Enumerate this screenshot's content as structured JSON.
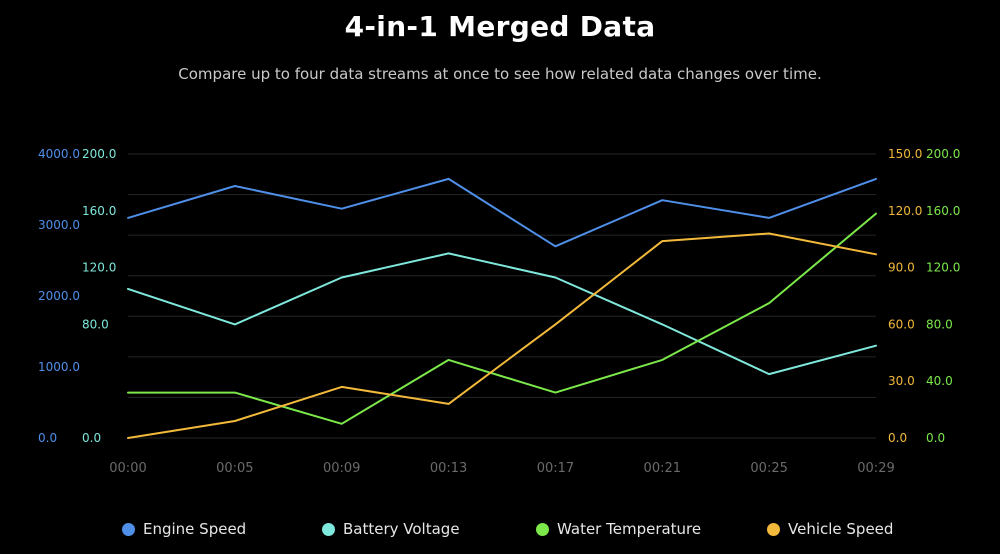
{
  "title": "4-in-1 Merged Data",
  "subtitle": "Compare up to four data streams at once to see how related data changes over time.",
  "chart_data": {
    "type": "line",
    "title": "4-in-1 Merged Data",
    "subtitle": "Compare up to four data streams at once to see how related data changes over time.",
    "x": [
      "00:00",
      "00:05",
      "00:09",
      "00:13",
      "00:17",
      "00:21",
      "00:25",
      "00:29"
    ],
    "grid": true,
    "legend_position": "bottom",
    "axes": {
      "engine": {
        "side": "left",
        "min": 0,
        "max": 4000,
        "ticks": [
          "0.0",
          "1000.0",
          "2000.0",
          "3000.0",
          "4000.0"
        ],
        "color": "#4f8fe8"
      },
      "battery": {
        "side": "left",
        "min": 0,
        "max": 200,
        "ticks": [
          "0.0",
          "80.0",
          "120.0",
          "160.0",
          "200.0"
        ],
        "tick_values": [
          0,
          80,
          120,
          160,
          200
        ],
        "color": "#7fe8dc"
      },
      "vehicle": {
        "side": "right",
        "min": 0,
        "max": 150,
        "ticks": [
          "0.0",
          "30.0",
          "60.0",
          "90.0",
          "120.0",
          "150.0"
        ],
        "color": "#f2b93b"
      },
      "water": {
        "side": "right",
        "min": 0,
        "max": 200,
        "ticks": [
          "0.0",
          "40.0",
          "80.0",
          "120.0",
          "160.0",
          "200.0"
        ],
        "color": "#7ce84a"
      }
    },
    "series": [
      {
        "name": "Engine Speed",
        "axis": "engine",
        "color": "#4f8fe8",
        "values": [
          3100,
          3550,
          3230,
          3650,
          2700,
          3350,
          3100,
          3650
        ]
      },
      {
        "name": "Battery Voltage",
        "axis": "battery",
        "color": "#7fe8dc",
        "values": [
          105,
          80,
          113,
          130,
          113,
          80,
          45,
          65
        ]
      },
      {
        "name": "Water Temperature",
        "axis": "water",
        "color": "#7ce84a",
        "values": [
          32,
          32,
          10,
          55,
          32,
          55,
          95,
          158
        ]
      },
      {
        "name": "Vehicle Speed",
        "axis": "vehicle",
        "color": "#f2b93b",
        "values": [
          0,
          9,
          27,
          18,
          60,
          104,
          108,
          97
        ]
      }
    ]
  }
}
